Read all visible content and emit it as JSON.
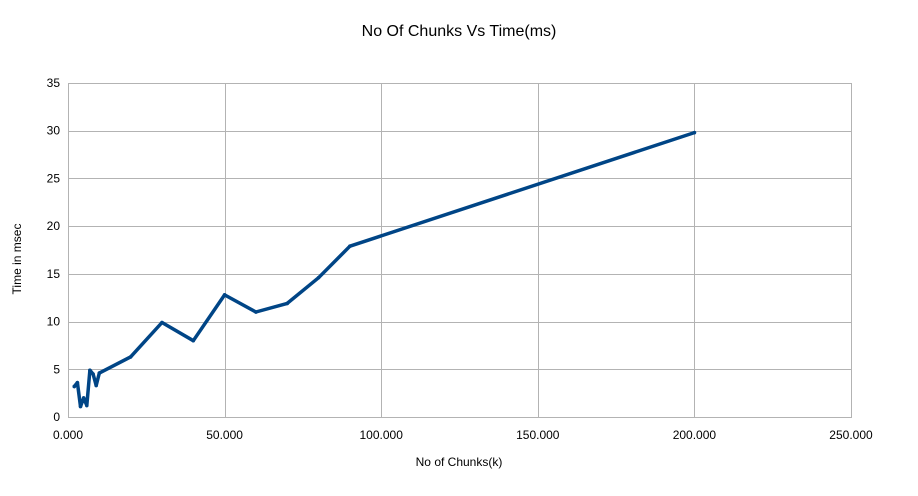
{
  "chart_data": {
    "type": "line",
    "title": "No Of Chunks Vs Time(ms)",
    "xlabel": "No of Chunks(k)",
    "ylabel": "Time in msec",
    "xlim": [
      0,
      250000
    ],
    "ylim": [
      0,
      35
    ],
    "x_ticks": [
      0,
      50000,
      100000,
      150000,
      200000,
      250000
    ],
    "x_tick_labels": [
      "0.000",
      "50.000",
      "100.000",
      "150.000",
      "200.000",
      "250.000"
    ],
    "y_ticks": [
      0,
      5,
      10,
      15,
      20,
      25,
      30,
      35
    ],
    "y_tick_labels": [
      "0",
      "5",
      "10",
      "15",
      "20",
      "25",
      "30",
      "35"
    ],
    "grid": true,
    "legend": "none",
    "series": [
      {
        "color": "#004586",
        "x": [
          2000,
          3000,
          4000,
          5000,
          6000,
          7000,
          8000,
          9000,
          10000,
          20000,
          30000,
          40000,
          50000,
          60000,
          70000,
          80000,
          90000,
          200000
        ],
        "y": [
          3.2,
          3.6,
          1.1,
          2.0,
          1.2,
          4.9,
          4.5,
          3.3,
          4.6,
          6.3,
          9.9,
          8.0,
          12.8,
          11.0,
          11.9,
          14.6,
          17.9,
          29.8
        ]
      }
    ]
  }
}
